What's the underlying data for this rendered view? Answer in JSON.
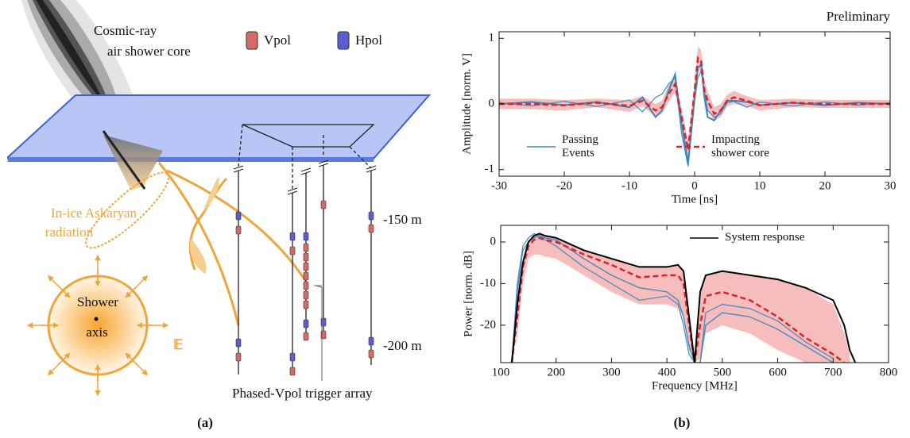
{
  "diagram": {
    "shower_label": [
      "Cosmic-ray",
      "air shower core"
    ],
    "legend": [
      "Vpol",
      "Hpol"
    ],
    "radiation_label": [
      "In-ice Askaryan",
      "radiation"
    ],
    "axis_label": [
      "Shower",
      "axis"
    ],
    "field_label": "𝔼",
    "depths": [
      "-150 m",
      "-200 m"
    ],
    "trigger_label": "Phased-Vpol trigger array"
  },
  "captions": [
    "(a)",
    "(b)"
  ],
  "chart_data": [
    {
      "type": "line",
      "annotation": "Preliminary",
      "x_label": "Time [ns]",
      "y_label": "Amplitude [norm. V]",
      "x": [
        -30,
        -25,
        -20,
        -15,
        -10,
        -8,
        -6,
        -5,
        -4,
        -3,
        -2,
        -1,
        0,
        0.5,
        1,
        1.5,
        2,
        3,
        4,
        5,
        6,
        8,
        10,
        15,
        20,
        25,
        30
      ],
      "series": [
        {
          "color": "#f4a6a6",
          "upper": [
            0.08,
            0.08,
            0.06,
            0.08,
            0.06,
            0.12,
            0,
            0.05,
            0.28,
            0.42,
            -0.08,
            -0.55,
            0.35,
            0.88,
            0.82,
            0.35,
            0.2,
            -0.05,
            0,
            0.14,
            0.2,
            0.12,
            0.06,
            0.08,
            0.06,
            0.06,
            0.06
          ],
          "lower": [
            -0.08,
            -0.08,
            -0.1,
            -0.05,
            -0.12,
            -0.03,
            -0.2,
            -0.15,
            0.03,
            0.18,
            -0.32,
            -0.85,
            0.05,
            0.52,
            0.48,
            0.05,
            -0.1,
            -0.25,
            -0.2,
            -0.04,
            0,
            -0.03,
            -0.1,
            -0.05,
            -0.06,
            -0.06,
            -0.06
          ]
        },
        {
          "color": "#4a90c2",
          "values": [
            0.02,
            -0.03,
            0.04,
            -0.04,
            0.06,
            -0.12,
            0.1,
            0.15,
            0.3,
            0.4,
            -0.45,
            -0.95,
            0.05,
            0.4,
            0.5,
            0.2,
            -0.1,
            -0.2,
            -0.15,
            0.02,
            0.04,
            -0.05,
            0.03,
            -0.03,
            0.03,
            -0.02,
            0.02
          ]
        },
        {
          "name": "Passing Events",
          "color": "#3a86bd",
          "values": [
            0,
            0.03,
            -0.02,
            0.03,
            -0.05,
            0.1,
            -0.2,
            -0.1,
            0.2,
            0.45,
            -0.3,
            -0.9,
            0.1,
            0.55,
            0.6,
            0.1,
            -0.2,
            -0.25,
            -0.1,
            0.05,
            0.05,
            0.03,
            -0.02,
            0.02,
            -0.02,
            0.02,
            0
          ]
        },
        {
          "name": "Impacting shower core",
          "color": "#d62728",
          "dash": true,
          "values": [
            0,
            0,
            -0.02,
            0.02,
            -0.03,
            0.05,
            -0.1,
            -0.05,
            0.15,
            0.3,
            -0.2,
            -0.7,
            0.2,
            0.7,
            0.65,
            0.2,
            0.05,
            -0.15,
            -0.1,
            0.05,
            0.1,
            0.05,
            -0.02,
            0.02,
            0,
            0,
            0
          ]
        }
      ],
      "xlim": [
        -30,
        30
      ],
      "xticks": [
        -30,
        -20,
        -10,
        0,
        10,
        20,
        30
      ],
      "ylim": [
        -1.1,
        1.1
      ],
      "yticks": [
        -1,
        0,
        1
      ]
    },
    {
      "type": "line",
      "x_label": "Frequency [MHz]",
      "y_label": "Power [norm. dB]",
      "x": [
        120,
        130,
        140,
        150,
        160,
        170,
        180,
        200,
        250,
        300,
        350,
        400,
        420,
        430,
        440,
        450,
        460,
        470,
        500,
        550,
        600,
        650,
        700,
        720,
        730,
        740
      ],
      "series": [
        {
          "color": "#f4a6a6",
          "upper": [
            -29,
            -14,
            -4,
            0,
            1.5,
            2,
            1.5,
            1,
            -2,
            -4,
            -6,
            -6,
            -5.5,
            -7,
            -18,
            -29,
            -12,
            -8,
            -7,
            -8,
            -9,
            -11,
            -15,
            -22,
            -27,
            null
          ],
          "lower": [
            -29,
            -22,
            -10,
            -4,
            -3,
            -3,
            -3.5,
            -4,
            -8,
            -12,
            -15,
            -15,
            -16,
            -18,
            -26,
            -29,
            -28,
            -22,
            -20,
            -22,
            -26,
            -29,
            -29,
            -29,
            -29,
            null
          ]
        },
        {
          "color": "#4a90c2",
          "values": [
            -29,
            -10,
            -1,
            1,
            2,
            1.5,
            0.5,
            -1,
            -6,
            -10,
            -14,
            -13,
            -15,
            -20,
            -27,
            -29,
            -29,
            -17,
            -15,
            -16,
            -19,
            -24,
            -28,
            null,
            null,
            null
          ]
        },
        {
          "color": "#3a86bd",
          "values": [
            -29,
            -12,
            -2,
            0,
            1,
            1.5,
            1,
            0.5,
            -4,
            -8,
            -11,
            -12,
            -14,
            -18,
            -25,
            -29,
            -29,
            -20,
            -17,
            -18,
            -21,
            -25,
            -29,
            null,
            null,
            null
          ]
        },
        {
          "color": "#d62728",
          "dash": true,
          "values": [
            -29,
            -18,
            -6,
            -1,
            0.5,
            1,
            0.5,
            0,
            -3,
            -5.5,
            -8.5,
            -8,
            -8,
            -10,
            -20,
            -29,
            -20,
            -13,
            -12,
            -14,
            -18,
            -23,
            -27,
            -29,
            null,
            null
          ]
        },
        {
          "name": "System response",
          "color": "#000000",
          "values": [
            -29,
            -15,
            -5,
            0,
            1.5,
            2,
            1.5,
            1,
            -2,
            -4,
            -6,
            -6,
            -5.5,
            -7,
            -18,
            -29,
            -12,
            -8,
            -7,
            -8,
            -9,
            -11,
            -14,
            -20,
            -26,
            -29
          ]
        }
      ],
      "xlim": [
        100,
        800
      ],
      "xticks": [
        100,
        200,
        300,
        400,
        500,
        600,
        700,
        800
      ],
      "ylim": [
        -29,
        4
      ],
      "yticks": [
        -20,
        -10,
        0
      ]
    }
  ]
}
